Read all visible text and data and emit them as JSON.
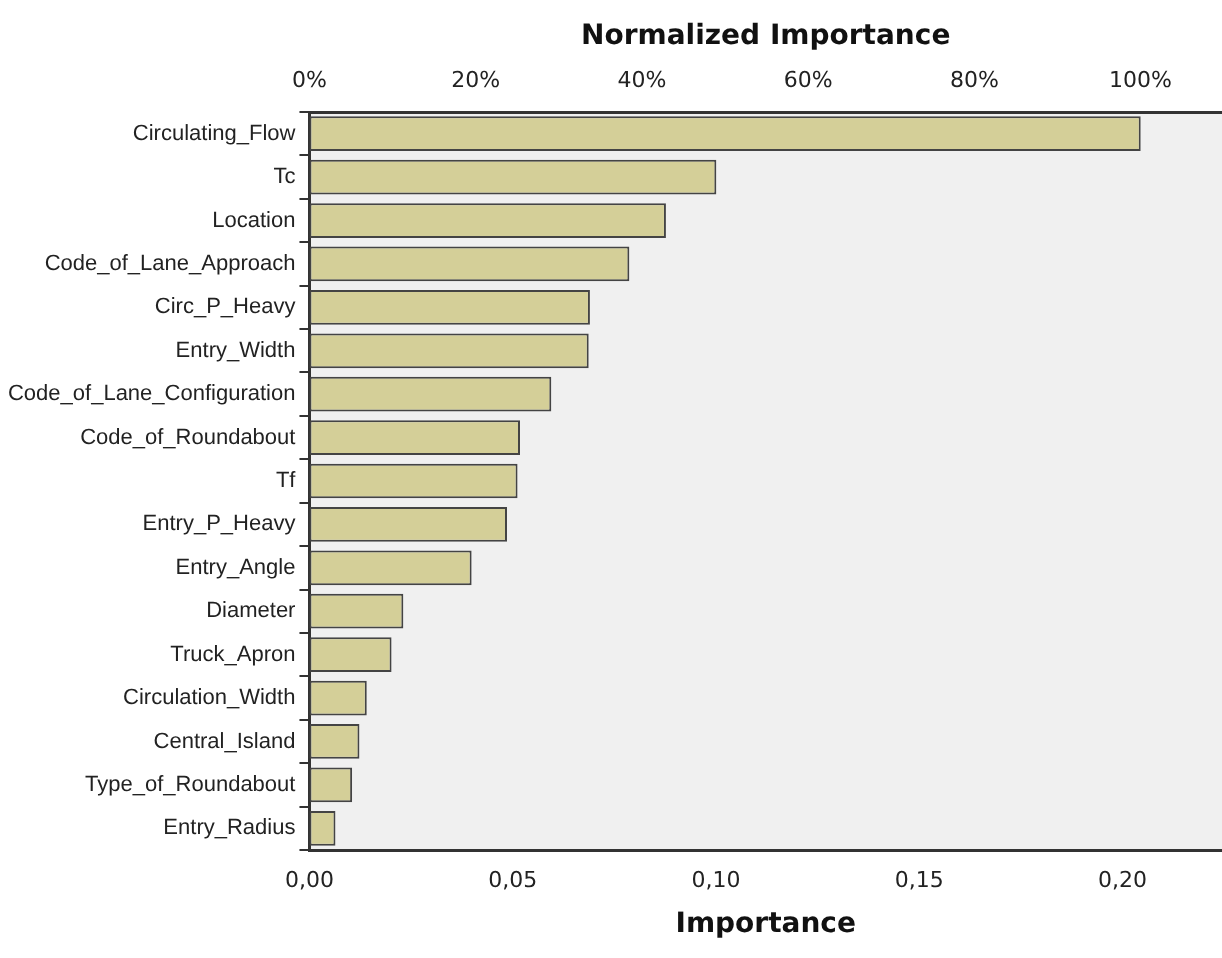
{
  "chart_data": {
    "type": "bar",
    "orientation": "horizontal",
    "xlabel": "Importance",
    "x2label": "Normalized Importance",
    "categories": [
      "Circulating_Flow",
      "Tc",
      "Location",
      "Code_of_Lane_Approach",
      "Circ_P_Heavy",
      "Entry_Width",
      "Code_of_Lane_Configuration",
      "Code_of_Roundabout",
      "Tf",
      "Entry_P_Heavy",
      "Entry_Angle",
      "Diameter",
      "Truck_Apron",
      "Circulation_Width",
      "Central_Island",
      "Type_of_Roundabout",
      "Entry_Radius"
    ],
    "values": [
      0.2045,
      0.1001,
      0.0877,
      0.0787,
      0.069,
      0.0687,
      0.0595,
      0.0518,
      0.0512,
      0.0486,
      0.0399,
      0.0231,
      0.0202,
      0.0141,
      0.0123,
      0.0105,
      0.0064
    ],
    "color": "#d4cf98",
    "xlim": [
      0,
      0.2245
    ],
    "xticks": [
      {
        "value": 0,
        "label": "0,00"
      },
      {
        "value": 0.05,
        "label": "0,05"
      },
      {
        "value": 0.1,
        "label": "0,10"
      },
      {
        "value": 0.15,
        "label": "0,15"
      },
      {
        "value": 0.2,
        "label": "0,20"
      }
    ],
    "x2lim": [
      0,
      109.8
    ],
    "x2ticks": [
      {
        "value": 0,
        "label": "0%"
      },
      {
        "value": 20,
        "label": "20%"
      },
      {
        "value": 40,
        "label": "40%"
      },
      {
        "value": 60,
        "label": "60%"
      },
      {
        "value": 80,
        "label": "80%"
      },
      {
        "value": 100,
        "label": "100%"
      }
    ]
  }
}
